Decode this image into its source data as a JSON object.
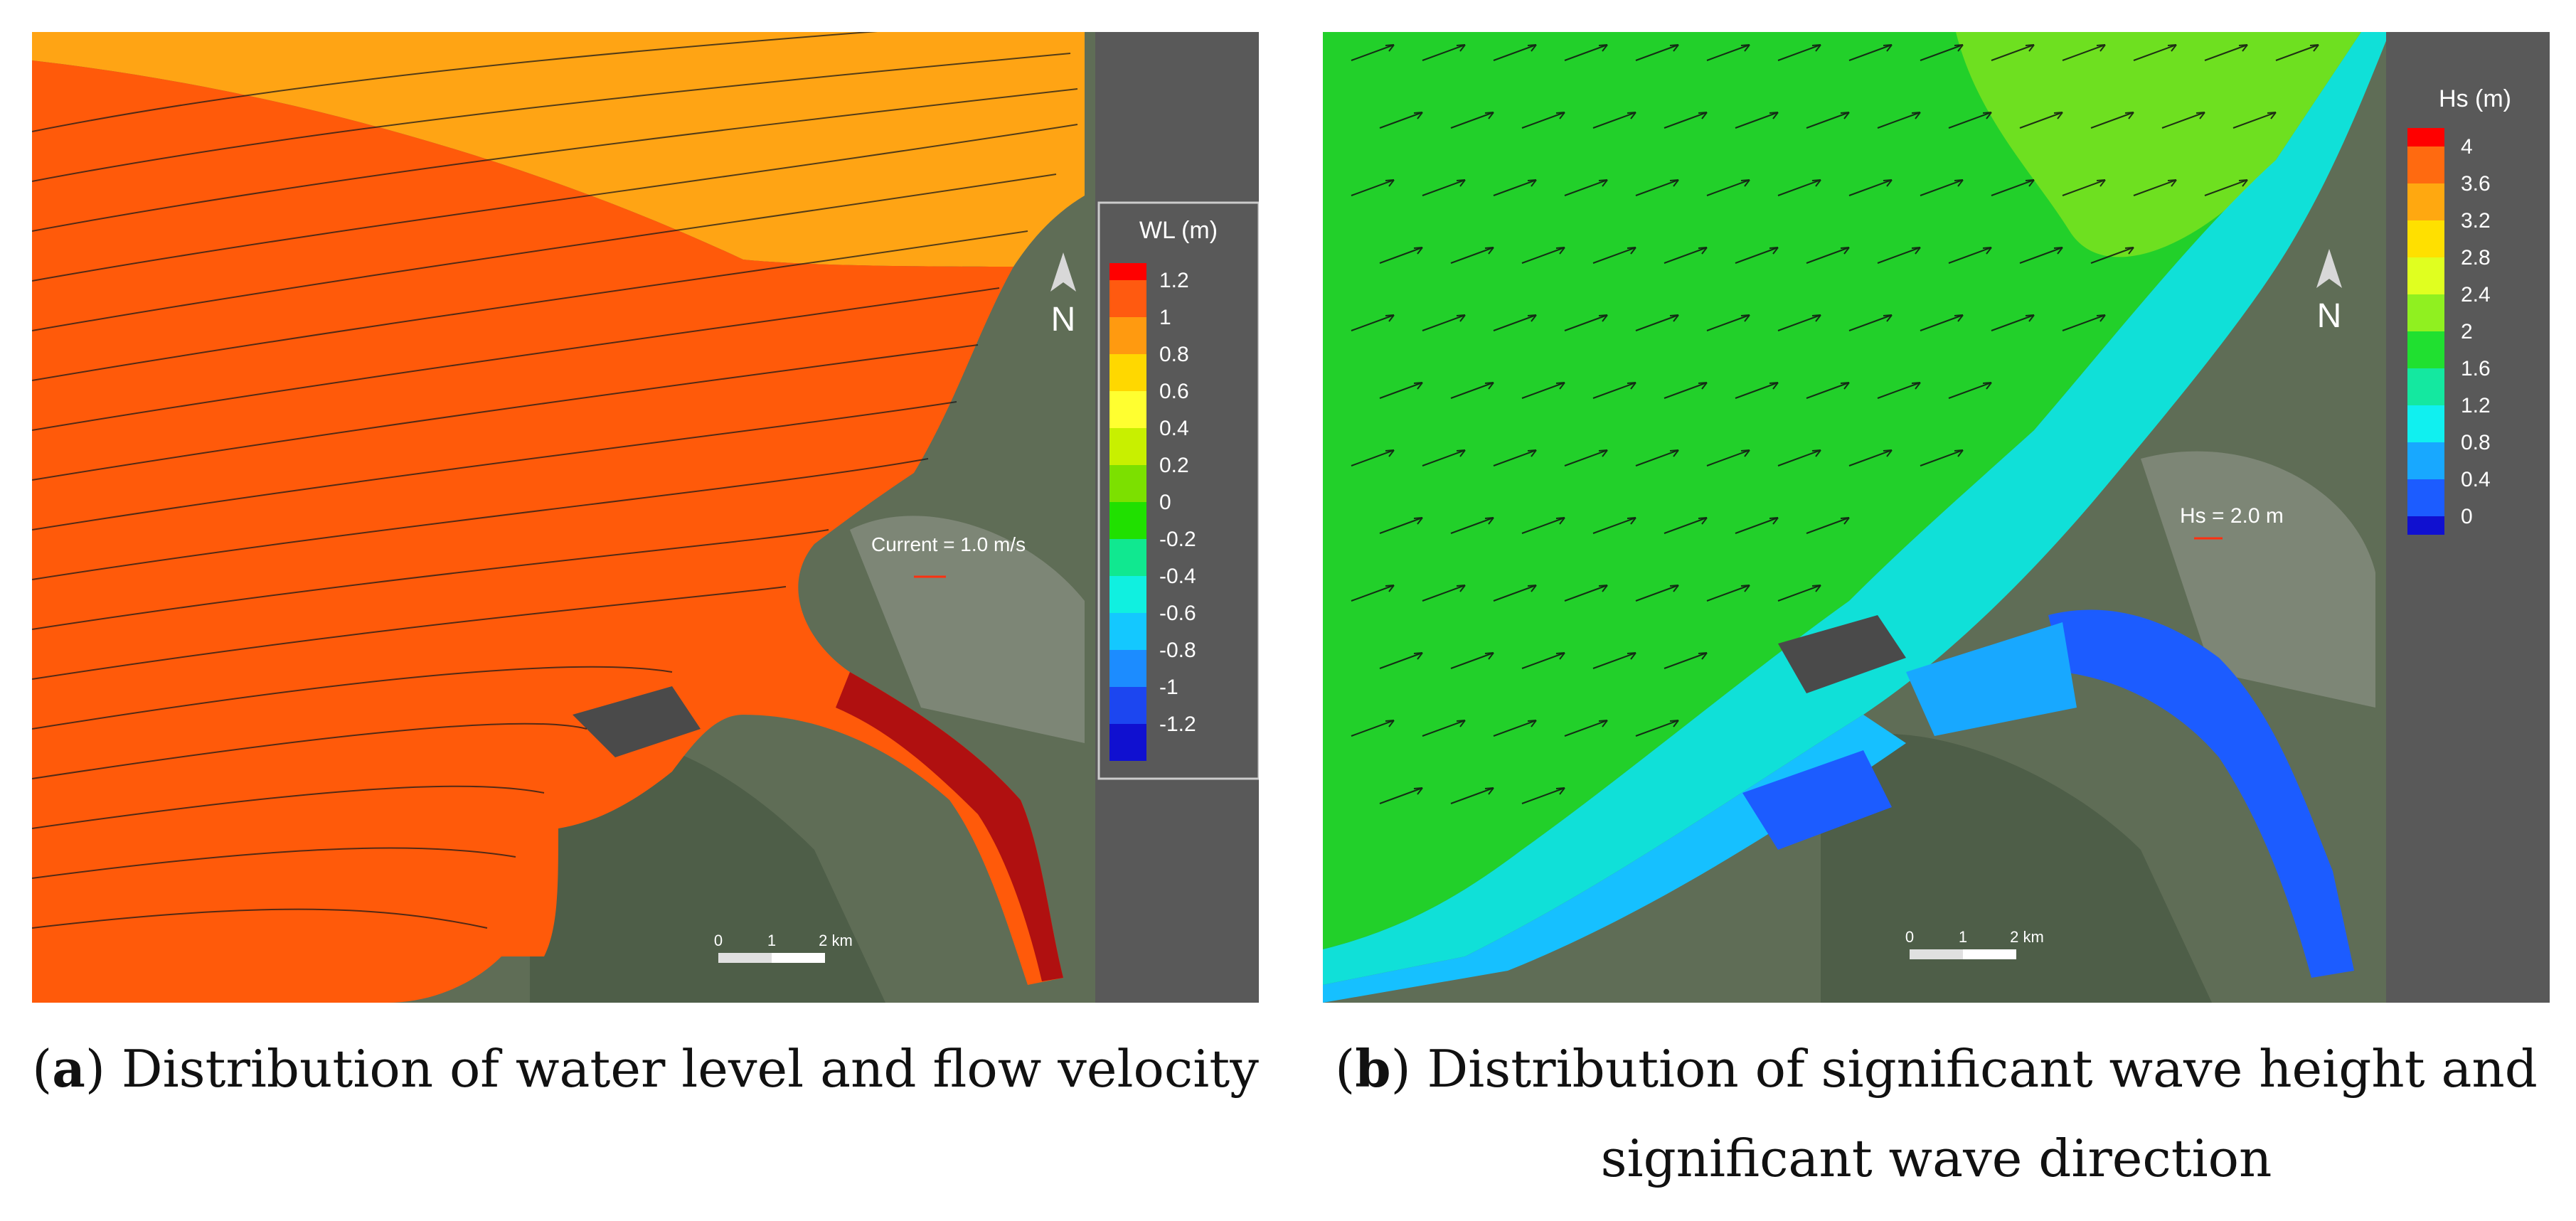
{
  "panel_a": {
    "legend_title": "WL (m)",
    "legend_labels": [
      "1.2",
      "1",
      "0.8",
      "0.6",
      "0.4",
      "0.2",
      "0",
      "-0.2",
      "-0.4",
      "-0.6",
      "-0.8",
      "-1",
      "-1.2"
    ],
    "legend_colors": [
      "#ff0000",
      "#ff5a10",
      "#ff9a10",
      "#ffd800",
      "#ffff30",
      "#c8f000",
      "#7ce000",
      "#20e000",
      "#10e890",
      "#10f0e0",
      "#14c8ff",
      "#1c8cff",
      "#1c46f0",
      "#1010d0"
    ],
    "current_ref_label": "Current = 1.0 m/s",
    "north_label": "N",
    "scale_labels": [
      "0",
      "1",
      "2 km"
    ],
    "caption_letter": "a",
    "caption_text": ") Distribution of water level and flow velocity"
  },
  "panel_b": {
    "legend_title": "Hs (m)",
    "legend_labels": [
      "4",
      "3.6",
      "3.2",
      "2.8",
      "2.4",
      "2",
      "1.6",
      "1.2",
      "0.8",
      "0.4",
      "0"
    ],
    "legend_colors": [
      "#ff0000",
      "#ff6a10",
      "#ffa810",
      "#ffe000",
      "#e0ff20",
      "#90f020",
      "#20e030",
      "#14e8a0",
      "#10f0f0",
      "#18a8ff",
      "#1c5cff",
      "#1010d0"
    ],
    "wave_ref_label": "Hs = 2.0 m",
    "north_label": "N",
    "scale_labels": [
      "0",
      "1",
      "2 km"
    ],
    "caption_letter": "b",
    "caption_text": ") Distribution of significant wave height and significant wave direction"
  }
}
